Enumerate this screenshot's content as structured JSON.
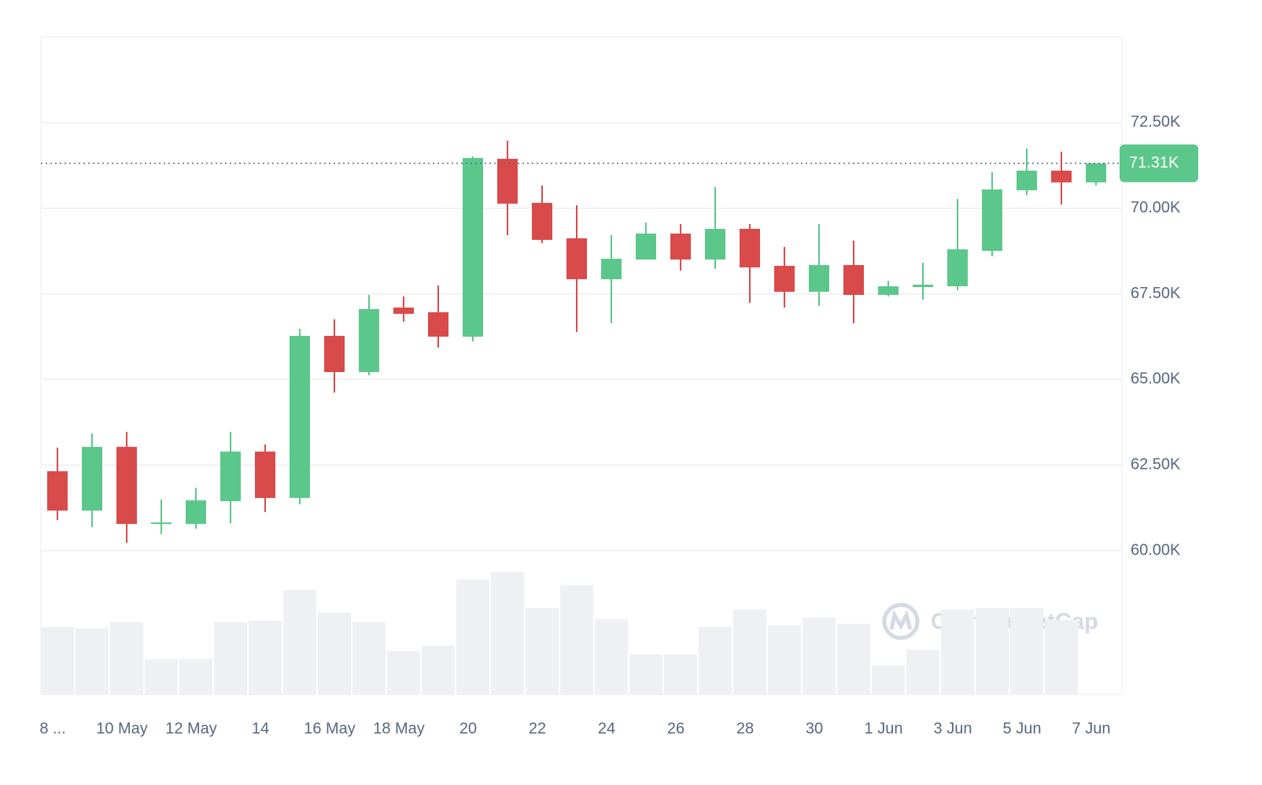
{
  "chart_data": {
    "type": "candlestick",
    "categories": [
      "8 ...",
      null,
      "10 May",
      null,
      "12 May",
      null,
      "14",
      null,
      "16 May",
      null,
      "18 May",
      null,
      "20",
      null,
      "22",
      null,
      "24",
      null,
      "26",
      null,
      "28",
      null,
      "30",
      null,
      "1 Jun",
      null,
      "3 Jun",
      null,
      "5 Jun",
      null,
      "7 Jun"
    ],
    "open": [
      62320,
      61171,
      63032,
      60780,
      60780,
      61447,
      62894,
      61539,
      66273,
      65216,
      67100,
      66962,
      66250,
      71443,
      70156,
      69122,
      67927,
      68502,
      69260,
      68502,
      69398,
      68318,
      67560,
      68341,
      67468,
      67698,
      67721,
      68754,
      70524,
      71098,
      70754
    ],
    "high": [
      63009,
      63423,
      63469,
      61493,
      61838,
      63469,
      63101,
      66479,
      66755,
      67468,
      67422,
      67743,
      71512,
      71972,
      70662,
      70087,
      69214,
      69582,
      69536,
      70616,
      69536,
      68869,
      69536,
      69053,
      67881,
      68410,
      70271,
      71052,
      71742,
      71650,
      71310
    ],
    "low": [
      60895,
      60688,
      60229,
      60482,
      60643,
      60803,
      61125,
      61355,
      64618,
      65124,
      66686,
      65928,
      66112,
      69214,
      68984,
      66388,
      66640,
      68502,
      68180,
      68226,
      67238,
      67100,
      67146,
      66640,
      67422,
      67330,
      67606,
      68594,
      70386,
      70110,
      70662
    ],
    "close": [
      61171,
      63032,
      60780,
      60826,
      61470,
      62894,
      61539,
      66273,
      65216,
      67054,
      66916,
      66250,
      71466,
      70133,
      69076,
      67927,
      68525,
      69260,
      68502,
      69398,
      68272,
      67560,
      68341,
      67468,
      67721,
      67767,
      68800,
      70547,
      71098,
      70754,
      71310
    ],
    "volume": [
      86,
      84,
      92,
      45,
      45,
      92,
      94,
      133,
      104,
      92,
      55,
      62,
      146,
      156,
      110,
      139,
      96,
      51,
      51,
      86,
      108,
      88,
      98,
      90,
      37,
      57,
      108,
      110,
      110,
      95,
      null
    ],
    "up_color": "#5cc78b",
    "down_color": "#d94a4a",
    "volume_color": "#eff0f4",
    "ylim": [
      55800,
      75000
    ],
    "yticks": [
      {
        "value": 60000,
        "label": "60.00K"
      },
      {
        "value": 62500,
        "label": "62.50K"
      },
      {
        "value": 65000,
        "label": "65.00K"
      },
      {
        "value": 67500,
        "label": "67.50K"
      },
      {
        "value": 70000,
        "label": "70.00K"
      },
      {
        "value": 72500,
        "label": "72.50K"
      }
    ],
    "volume_lim": [
      0,
      200
    ],
    "last_price": {
      "value": 71310,
      "label": "71.31K"
    },
    "watermark": "CoinMarketCap",
    "grid": true
  }
}
